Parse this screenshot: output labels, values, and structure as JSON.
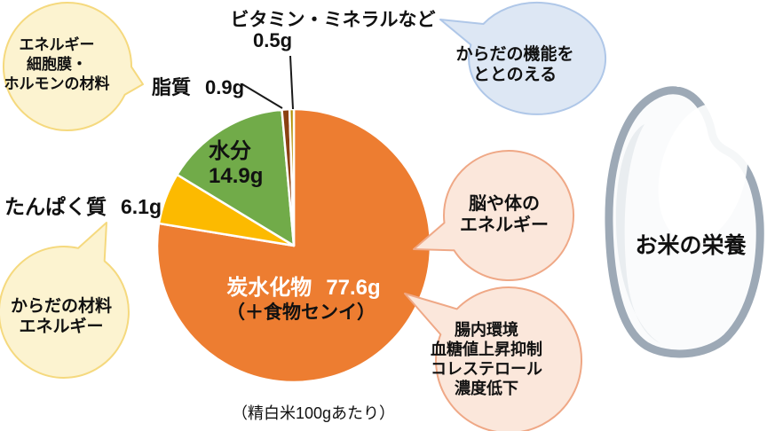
{
  "page_title": "お米の栄養",
  "caption": "（精白米100gあたり）",
  "rice_grain": {
    "title": "お米の栄養",
    "outline_color": "#9DA9B6",
    "fill_color": "#FAFBFC"
  },
  "chart_data": {
    "type": "pie",
    "title": "お米の栄養",
    "subtitle": "（精白米100gあたり）",
    "unit": "g",
    "total": 100,
    "direction": "clockwise",
    "start_angle_deg": 0,
    "separator_color": "#ffffff",
    "slices": [
      {
        "id": "carbohydrate",
        "label": "炭水化物",
        "value": 77.6,
        "display": "77.6g",
        "note": "（＋食物センイ）",
        "color": "#ED7D31"
      },
      {
        "id": "protein",
        "label": "たんぱく質",
        "value": 6.1,
        "display": "6.1g",
        "color": "#FCBA00"
      },
      {
        "id": "water",
        "label": "水分",
        "value": 14.9,
        "display": "14.9g",
        "color": "#71AB49"
      },
      {
        "id": "fat",
        "label": "脂質",
        "value": 0.9,
        "display": "0.9g",
        "color": "#8A4112"
      },
      {
        "id": "vitamin-mineral",
        "label": "ビタミン・ミネラルなど",
        "value": 0.5,
        "display": "0.5g",
        "color": "#B29104"
      }
    ]
  },
  "labels": {
    "vitamin": {
      "name": "ビタミン・ミネラルなど",
      "value": "0.5g"
    },
    "fat": {
      "name": "脂質",
      "value": "0.9g"
    },
    "protein": {
      "name": "たんぱく質",
      "value": "6.1g"
    },
    "water": {
      "name": "水分",
      "value": "14.9g"
    },
    "carbs": {
      "name": "炭水化物",
      "value": "77.6g",
      "sub": "（＋食物センイ）"
    }
  },
  "bubbles": [
    {
      "id": "energy-cell-material",
      "lines": [
        "エネルギー",
        "細胞膜・",
        "ホルモンの材料"
      ],
      "fill": "#FCF3D0",
      "stroke": "#F5D97E"
    },
    {
      "id": "body-function",
      "lines": [
        "からだの機能を",
        "ととのえる"
      ],
      "fill": "#DDE7F4",
      "stroke": "#AFC7E8"
    },
    {
      "id": "body-material-energy",
      "lines": [
        "からだの材料",
        "エネルギー"
      ],
      "fill": "#FCF3D0",
      "stroke": "#F5D97E"
    },
    {
      "id": "brain-body-energy",
      "lines": [
        "脳や体の",
        "エネルギー"
      ],
      "fill": "#FBE7DB",
      "stroke": "#EFA886"
    },
    {
      "id": "gut-benefits",
      "lines": [
        "腸内環境",
        "血糖値上昇抑制",
        "コレステロール",
        "濃度低下"
      ],
      "fill": "#FBE7DB",
      "stroke": "#EFA886"
    }
  ]
}
